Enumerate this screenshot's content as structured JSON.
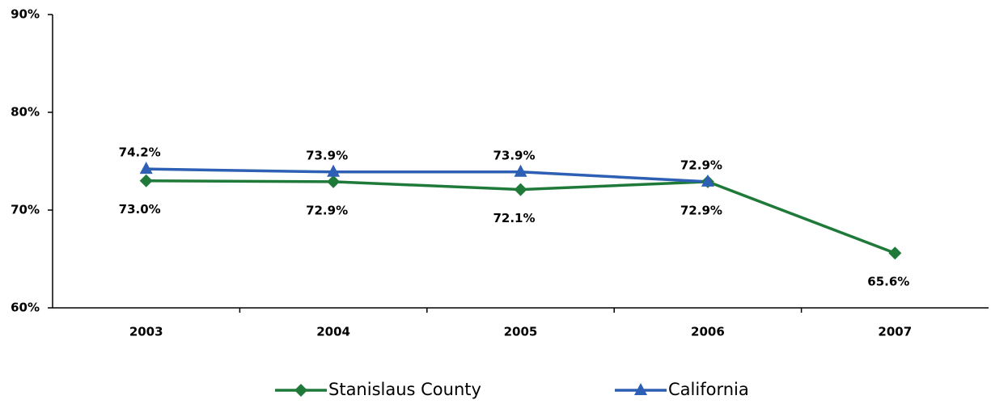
{
  "chart_data": {
    "type": "line",
    "categories": [
      "2003",
      "2004",
      "2005",
      "2006",
      "2007"
    ],
    "series": [
      {
        "name": "Stanislaus County",
        "color": "#1f7a3a",
        "marker": "diamond",
        "label_position": "below",
        "values": [
          73.0,
          72.9,
          72.1,
          72.9,
          65.6
        ],
        "value_labels": [
          "73.0%",
          "72.9%",
          "72.1%",
          "72.9%",
          "65.6%"
        ]
      },
      {
        "name": "California",
        "color": "#2d5fb4",
        "marker": "triangle",
        "label_position": "above",
        "values": [
          74.2,
          73.9,
          73.9,
          72.9,
          null
        ],
        "value_labels": [
          "74.2%",
          "73.9%",
          "73.9%",
          "72.9%",
          null
        ]
      }
    ],
    "ylim": [
      60,
      90
    ],
    "yticks": [
      {
        "value": 60,
        "label": "60%"
      },
      {
        "value": 70,
        "label": "70%"
      },
      {
        "value": 80,
        "label": "80%"
      },
      {
        "value": 90,
        "label": "90%"
      }
    ],
    "grid": false
  }
}
